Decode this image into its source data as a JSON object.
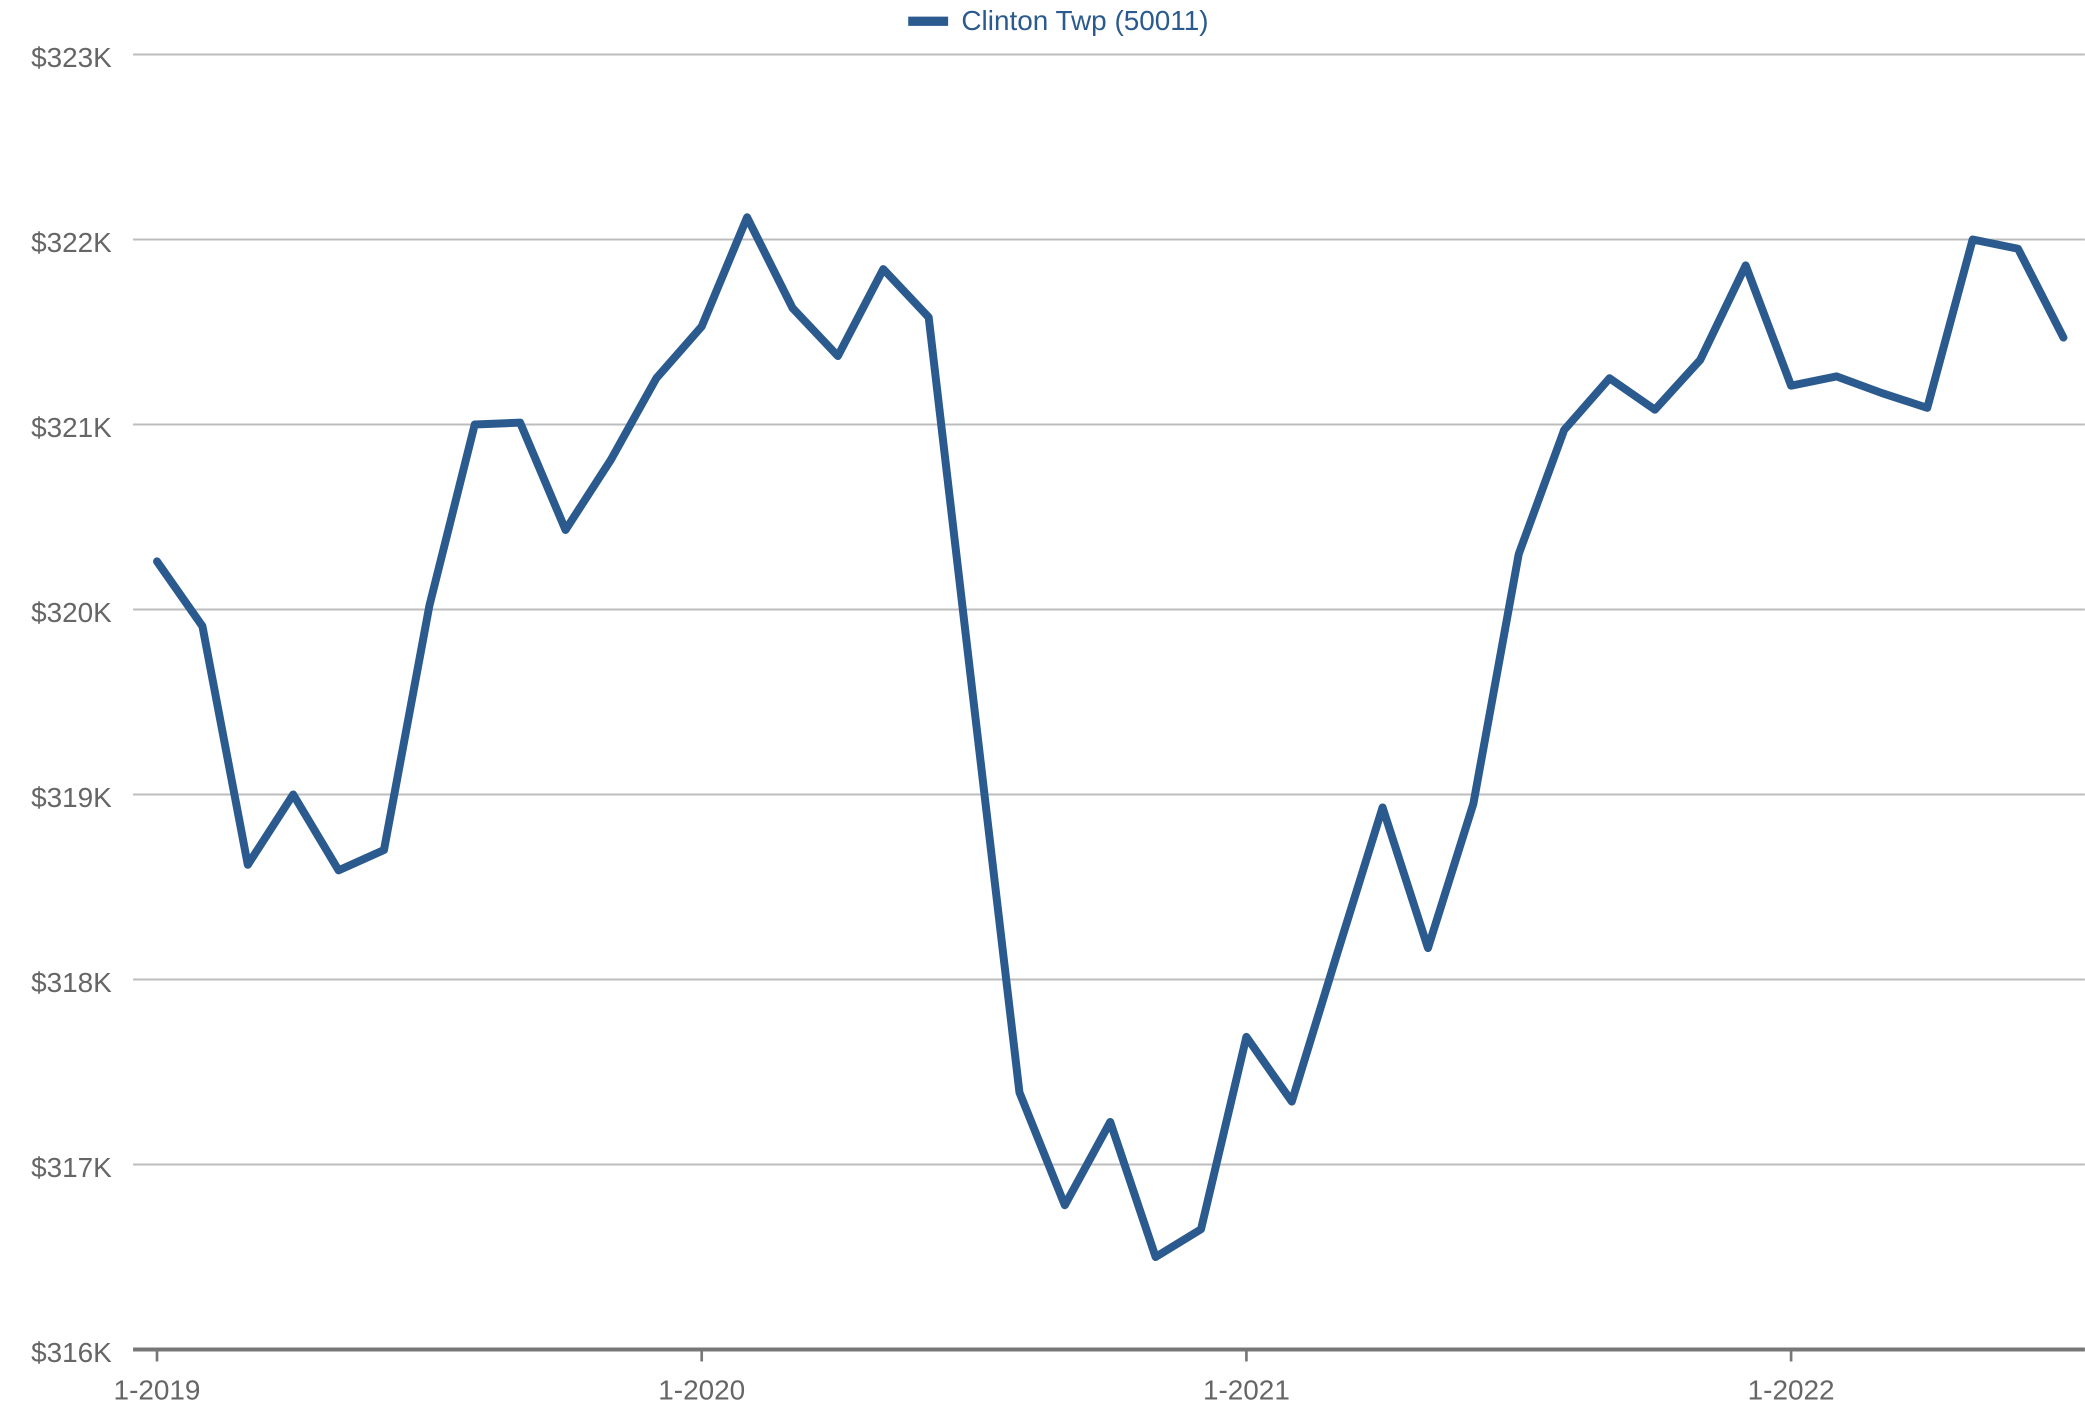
{
  "chart_data": {
    "type": "line",
    "categories": [
      "1-2019",
      null,
      null,
      null,
      null,
      null,
      null,
      null,
      null,
      null,
      null,
      null,
      "1-2020",
      null,
      null,
      null,
      null,
      null,
      null,
      null,
      null,
      null,
      null,
      null,
      "1-2021",
      null,
      null,
      null,
      null,
      null,
      null,
      null,
      null,
      null,
      null,
      null,
      "1-2022",
      null,
      null,
      null,
      null,
      null,
      null
    ],
    "series": [
      {
        "name": "Clinton Twp (50011)",
        "color": "#2b5a8e",
        "values": [
          320260,
          319910,
          318620,
          319000,
          318590,
          318700,
          320020,
          321000,
          321010,
          320430,
          320810,
          321250,
          321530,
          322120,
          321630,
          321370,
          321840,
          321580,
          319480,
          317390,
          316780,
          317230,
          316500,
          316650,
          317690,
          317340,
          318140,
          318930,
          318170,
          318950,
          320300,
          320970,
          321250,
          321080,
          321350,
          321860,
          321210,
          321260,
          321170,
          321090,
          322000,
          321950,
          321470
        ]
      }
    ],
    "ylim": [
      316000,
      323000
    ],
    "yticks": [
      {
        "value": 316000,
        "label": "$316K"
      },
      {
        "value": 317000,
        "label": "$317K"
      },
      {
        "value": 318000,
        "label": "$318K"
      },
      {
        "value": 319000,
        "label": "$319K"
      },
      {
        "value": 320000,
        "label": "$320K"
      },
      {
        "value": 321000,
        "label": "$321K"
      },
      {
        "value": 322000,
        "label": "$322K"
      },
      {
        "value": 323000,
        "label": "$323K"
      }
    ],
    "grid": true,
    "legend": "top"
  }
}
